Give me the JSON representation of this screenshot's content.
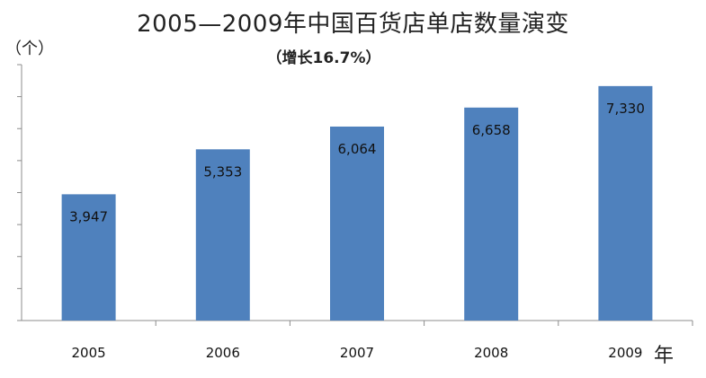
{
  "chart_data": {
    "type": "bar",
    "title": "2005—2009年中国百货店单店数量演变",
    "subtitle": "（增长16.7%）",
    "ylabel": "（个）",
    "xlabel": "年",
    "categories": [
      "2005",
      "2006",
      "2007",
      "2008",
      "2009"
    ],
    "values": [
      3947,
      5353,
      6064,
      6658,
      7330
    ],
    "value_labels": [
      "3,947",
      "5,353",
      "6,064",
      "6,658",
      "7,330"
    ],
    "ylim": [
      0,
      8000
    ],
    "grid": false,
    "legend": "none",
    "bar_color": "#4f81bd"
  }
}
